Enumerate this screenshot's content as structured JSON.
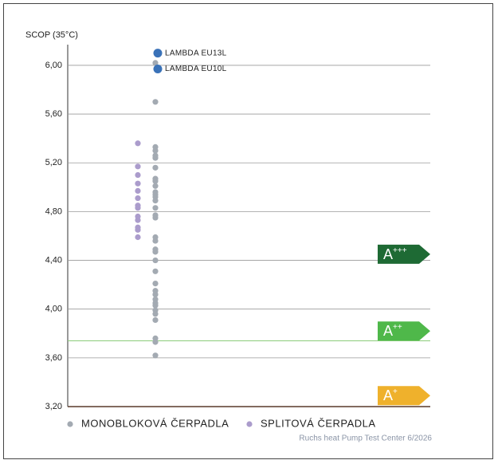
{
  "chart_data": {
    "type": "strip",
    "y_label": "SCOP (35°C)",
    "ylim": [
      3.2,
      6.15
    ],
    "yticks": [
      {
        "value": 3.2,
        "label": "3,20"
      },
      {
        "value": 3.6,
        "label": "3,60"
      },
      {
        "value": 4.0,
        "label": "4,00"
      },
      {
        "value": 4.4,
        "label": "4,40"
      },
      {
        "value": 4.8,
        "label": "4,80"
      },
      {
        "value": 5.2,
        "label": "5,20"
      },
      {
        "value": 5.6,
        "label": "5,60"
      },
      {
        "value": 6.0,
        "label": "6,00"
      }
    ],
    "grid": true,
    "series": [
      {
        "name": "MONOBLOKOVÁ ČERPADLA",
        "color": "#a3aab2",
        "values": [
          6.02,
          5.7,
          5.33,
          5.3,
          5.26,
          5.24,
          5.16,
          5.07,
          5.05,
          5.01,
          4.96,
          4.94,
          4.92,
          4.89,
          4.83,
          4.77,
          4.75,
          4.59,
          4.56,
          4.49,
          4.47,
          4.4,
          4.31,
          4.21,
          4.15,
          4.12,
          4.08,
          4.05,
          4.03,
          3.99,
          3.96,
          3.91,
          3.76,
          3.73,
          3.62
        ]
      },
      {
        "name": "SPLITOVÁ ČERPADLA",
        "color": "#ab9ccc",
        "values": [
          5.36,
          5.17,
          5.1,
          5.03,
          4.97,
          4.91,
          4.85,
          4.83,
          4.76,
          4.73,
          4.67,
          4.65,
          4.59
        ]
      }
    ],
    "highlights": [
      {
        "label": "LAMBDA EU13L",
        "value": 6.1,
        "color": "#3a72b8"
      },
      {
        "label": "LAMBDA EU10L",
        "value": 5.97,
        "color": "#3a72b8"
      }
    ],
    "reference_line": {
      "value": 3.74,
      "color": "#8ccc7a"
    },
    "energy_classes": [
      {
        "label": "A",
        "sup": "+++",
        "value": 4.45,
        "color": "#1e6a34"
      },
      {
        "label": "A",
        "sup": "++",
        "value": 3.82,
        "color": "#4fb84a"
      },
      {
        "label": "A",
        "sup": "+",
        "value": 3.29,
        "color": "#efb12c"
      }
    ],
    "source": "Ruchs heat Pump Test Center 6/2026"
  }
}
